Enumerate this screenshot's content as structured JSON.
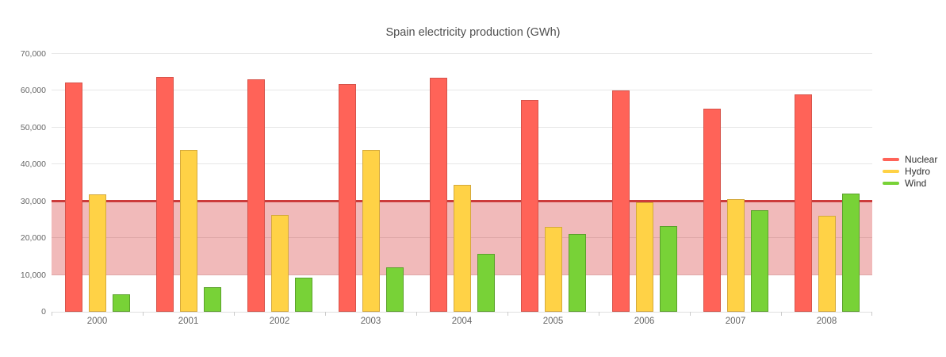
{
  "title": "Spain electricity production (GWh)",
  "chart_data": {
    "type": "bar",
    "title": "Spain electricity production (GWh)",
    "xlabel": "",
    "ylabel": "",
    "categories": [
      "2000",
      "2001",
      "2002",
      "2003",
      "2004",
      "2005",
      "2006",
      "2007",
      "2008"
    ],
    "series": [
      {
        "name": "Nuclear",
        "color": "#ff6358",
        "border_color": "#d6534a",
        "values": [
          62206,
          63708,
          63016,
          61875,
          63634,
          57539,
          60126,
          55103,
          58973
        ]
      },
      {
        "name": "Hydro",
        "color": "#ffd246",
        "border_color": "#d4a93c",
        "values": [
          31807,
          43864,
          26270,
          43897,
          34439,
          23025,
          29831,
          30522,
          26112
        ]
      },
      {
        "name": "Wind",
        "color": "#78d237",
        "border_color": "#5ba12b",
        "values": [
          4727,
          6759,
          9342,
          12075,
          15700,
          21176,
          23297,
          27568,
          32203
        ]
      }
    ],
    "ylim": [
      0,
      70000
    ],
    "y_tick_interval": 10000,
    "y_tick_labels": [
      "0",
      "10,000",
      "20,000",
      "30,000",
      "40,000",
      "50,000",
      "60,000",
      "70,000"
    ],
    "grid": "horizontal",
    "legend_position": "right",
    "plot_band": {
      "from": 10000,
      "to": 30000,
      "color": "rgba(204,0,0,0.27)"
    },
    "plot_line": {
      "value": 30000,
      "color": "#cc3b3b",
      "width": 3
    }
  }
}
